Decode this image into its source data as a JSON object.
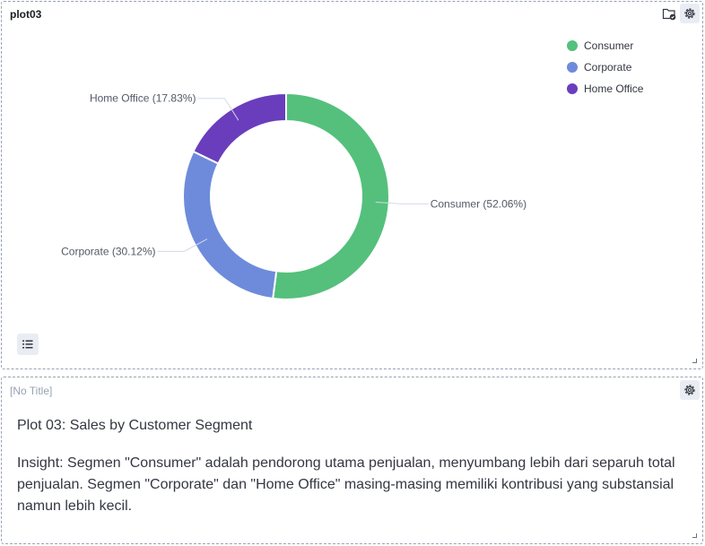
{
  "panel1": {
    "title": "plot03"
  },
  "chart_data": {
    "type": "pie",
    "donut": true,
    "categories": [
      "Consumer",
      "Corporate",
      "Home Office"
    ],
    "values": [
      52.06,
      30.12,
      17.83
    ],
    "labels": [
      "Consumer (52.06%)",
      "Corporate (30.12%)",
      "Home Office (17.83%)"
    ],
    "colors": [
      "#54c07c",
      "#6e8bdb",
      "#6a3dbd"
    ],
    "legend": [
      "Consumer",
      "Corporate",
      "Home Office"
    ],
    "legend_position": "top-right"
  },
  "panel2": {
    "title": "[No Title]",
    "heading": "Plot 03: Sales by Customer Segment",
    "insight": "Insight: Segmen \"Consumer\" adalah pendorong utama penjualan, menyumbang lebih dari separuh total penjualan. Segmen \"Corporate\" dan \"Home Office\" masing-masing memiliki kontribusi yang substansial namun lebih kecil."
  },
  "icons": {
    "gear": "gear-icon",
    "folder": "folder-check-icon",
    "legend_toggle": "list-icon"
  }
}
